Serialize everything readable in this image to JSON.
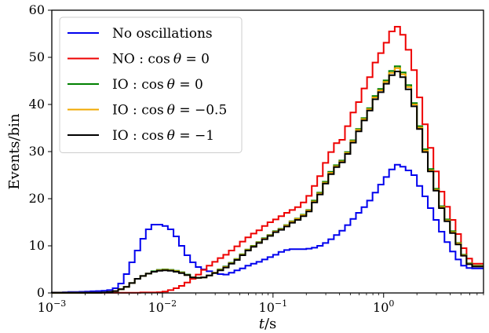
{
  "chart_data": {
    "type": "line",
    "step": true,
    "xscale": "log",
    "xlabel": "t/s",
    "ylabel": "Events/bin",
    "xlim": [
      0.001,
      8.0
    ],
    "ylim": [
      0,
      60
    ],
    "xticks": [
      {
        "value": 0.001,
        "base": "10",
        "exp": "−3"
      },
      {
        "value": 0.01,
        "base": "10",
        "exp": "−2"
      },
      {
        "value": 0.1,
        "base": "10",
        "exp": "−1"
      },
      {
        "value": 1,
        "base": "10",
        "exp": "0"
      }
    ],
    "yticks": [
      0,
      10,
      20,
      30,
      40,
      50,
      60
    ],
    "grid": false,
    "legend_position": "top-left",
    "x": [
      0.001,
      0.00112,
      0.00126,
      0.00141,
      0.00158,
      0.00178,
      0.002,
      0.00224,
      0.00251,
      0.00282,
      0.00316,
      0.00355,
      0.00398,
      0.00447,
      0.00501,
      0.00562,
      0.00631,
      0.00708,
      0.00794,
      0.00891,
      0.01,
      0.0112,
      0.0126,
      0.0141,
      0.0158,
      0.0178,
      0.02,
      0.0224,
      0.0251,
      0.0282,
      0.0316,
      0.0355,
      0.0398,
      0.0447,
      0.0501,
      0.0562,
      0.0631,
      0.0708,
      0.0794,
      0.0891,
      0.1,
      0.112,
      0.126,
      0.141,
      0.158,
      0.178,
      0.2,
      0.224,
      0.251,
      0.282,
      0.316,
      0.355,
      0.398,
      0.447,
      0.501,
      0.562,
      0.631,
      0.708,
      0.794,
      0.891,
      1.0,
      1.12,
      1.26,
      1.41,
      1.58,
      1.78,
      2.0,
      2.24,
      2.51,
      2.82,
      3.16,
      3.55,
      3.98,
      4.47,
      5.01,
      5.62,
      6.31,
      7.08
    ],
    "series": [
      {
        "name": "No oscillations",
        "color": "#0000ee",
        "values": [
          0.1,
          0.1,
          0.15,
          0.2,
          0.2,
          0.25,
          0.3,
          0.35,
          0.4,
          0.45,
          0.6,
          1.0,
          2.0,
          4.0,
          6.5,
          9.0,
          11.5,
          13.5,
          14.5,
          14.5,
          14.2,
          13.5,
          12.0,
          10.0,
          8.0,
          6.5,
          5.5,
          5.0,
          4.6,
          4.3,
          4.0,
          3.9,
          4.3,
          4.8,
          5.2,
          5.8,
          6.2,
          6.6,
          7.1,
          7.6,
          8.1,
          8.7,
          9.1,
          9.3,
          9.3,
          9.3,
          9.4,
          9.6,
          10.0,
          10.6,
          11.4,
          12.3,
          13.2,
          14.4,
          15.7,
          17.0,
          18.2,
          19.6,
          21.3,
          23.0,
          24.6,
          26.2,
          27.2,
          26.8,
          26.0,
          25.0,
          22.7,
          20.5,
          18.0,
          15.5,
          13.0,
          10.8,
          8.8,
          7.1,
          5.8,
          5.3,
          5.2,
          5.2
        ]
      },
      {
        "name": "NO : cos θ = 0",
        "color": "#ee0000",
        "values": [
          0.05,
          0.05,
          0.05,
          0.05,
          0.05,
          0.05,
          0.05,
          0.05,
          0.05,
          0.05,
          0.05,
          0.05,
          0.05,
          0.05,
          0.05,
          0.05,
          0.1,
          0.1,
          0.1,
          0.15,
          0.3,
          0.6,
          1.0,
          1.5,
          2.2,
          3.0,
          3.9,
          4.9,
          5.8,
          6.6,
          7.4,
          8.1,
          9.0,
          9.9,
          10.9,
          11.8,
          12.6,
          13.3,
          14.2,
          15.0,
          15.6,
          16.3,
          17.0,
          17.6,
          18.2,
          19.2,
          20.6,
          22.7,
          24.8,
          27.6,
          29.9,
          31.8,
          32.5,
          35.4,
          38.3,
          40.5,
          43.4,
          45.8,
          48.9,
          50.9,
          53.1,
          55.5,
          56.5,
          54.8,
          51.6,
          47.3,
          41.5,
          35.8,
          30.8,
          25.8,
          21.5,
          18.3,
          15.5,
          12.5,
          9.5,
          7.3,
          6.2,
          6.2
        ]
      },
      {
        "name": "IO : cos θ = 0",
        "color": "#008000",
        "values": [
          0.05,
          0.05,
          0.05,
          0.05,
          0.05,
          0.05,
          0.05,
          0.05,
          0.05,
          0.1,
          0.2,
          0.4,
          0.8,
          1.3,
          2.1,
          3.0,
          3.6,
          4.1,
          4.6,
          4.9,
          5.0,
          4.9,
          4.7,
          4.4,
          3.9,
          3.3,
          3.2,
          3.3,
          3.7,
          4.3,
          5.0,
          5.6,
          6.4,
          7.2,
          8.2,
          9.2,
          10.0,
          10.8,
          11.6,
          12.3,
          13.1,
          13.6,
          14.4,
          15.2,
          15.8,
          16.6,
          17.6,
          19.6,
          21.3,
          23.6,
          25.7,
          27.1,
          28.1,
          29.9,
          32.4,
          34.8,
          37.1,
          39.2,
          41.8,
          43.3,
          45.1,
          47.1,
          48.1,
          46.8,
          44.1,
          40.3,
          35.4,
          30.5,
          26.3,
          22.1,
          18.4,
          15.6,
          13.1,
          10.6,
          8.1,
          6.3,
          5.8,
          5.8
        ]
      },
      {
        "name": "IO : cos θ = −0.5",
        "color": "#f0a800",
        "values": [
          0.05,
          0.05,
          0.05,
          0.05,
          0.05,
          0.05,
          0.05,
          0.05,
          0.05,
          0.1,
          0.2,
          0.4,
          0.8,
          1.3,
          2.1,
          3.0,
          3.6,
          4.1,
          4.5,
          4.8,
          4.9,
          4.8,
          4.6,
          4.3,
          3.8,
          3.3,
          3.2,
          3.3,
          3.7,
          4.3,
          4.9,
          5.5,
          6.3,
          7.1,
          8.1,
          9.1,
          9.9,
          10.7,
          11.5,
          12.2,
          13.0,
          13.5,
          14.3,
          15.1,
          15.7,
          16.5,
          17.5,
          19.4,
          21.1,
          23.4,
          25.5,
          26.9,
          27.9,
          29.7,
          32.2,
          34.6,
          36.9,
          39.0,
          41.5,
          43.0,
          44.8,
          46.7,
          47.7,
          46.4,
          43.7,
          40.0,
          35.1,
          30.2,
          26.0,
          21.9,
          18.2,
          15.4,
          12.9,
          10.5,
          8.0,
          6.2,
          5.7,
          5.7
        ]
      },
      {
        "name": "IO : cos θ = −1",
        "color": "#000000",
        "values": [
          0.05,
          0.05,
          0.05,
          0.05,
          0.05,
          0.05,
          0.05,
          0.05,
          0.05,
          0.1,
          0.2,
          0.4,
          0.8,
          1.3,
          2.1,
          3.0,
          3.6,
          4.1,
          4.5,
          4.7,
          4.8,
          4.7,
          4.5,
          4.2,
          3.8,
          3.3,
          3.2,
          3.3,
          3.7,
          4.2,
          4.8,
          5.4,
          6.2,
          7.0,
          8.0,
          9.0,
          9.8,
          10.6,
          11.4,
          12.1,
          12.9,
          13.4,
          14.1,
          14.9,
          15.5,
          16.3,
          17.3,
          19.2,
          20.9,
          23.2,
          25.2,
          26.7,
          27.7,
          29.5,
          31.9,
          34.3,
          36.6,
          38.7,
          41.1,
          42.6,
          44.4,
          46.2,
          47.0,
          45.8,
          43.2,
          39.6,
          34.8,
          29.9,
          25.8,
          21.7,
          18.0,
          15.2,
          12.7,
          10.3,
          7.9,
          6.1,
          5.6,
          5.6
        ]
      }
    ],
    "legend": [
      {
        "lead": "No oscillations",
        "eq": ""
      },
      {
        "lead": "NO : cos",
        "eq": "θ = 0"
      },
      {
        "lead": "IO : cos",
        "eq": "θ = 0"
      },
      {
        "lead": "IO : cos",
        "eq": "θ = −0.5"
      },
      {
        "lead": "IO : cos",
        "eq": "θ = −1"
      }
    ]
  }
}
